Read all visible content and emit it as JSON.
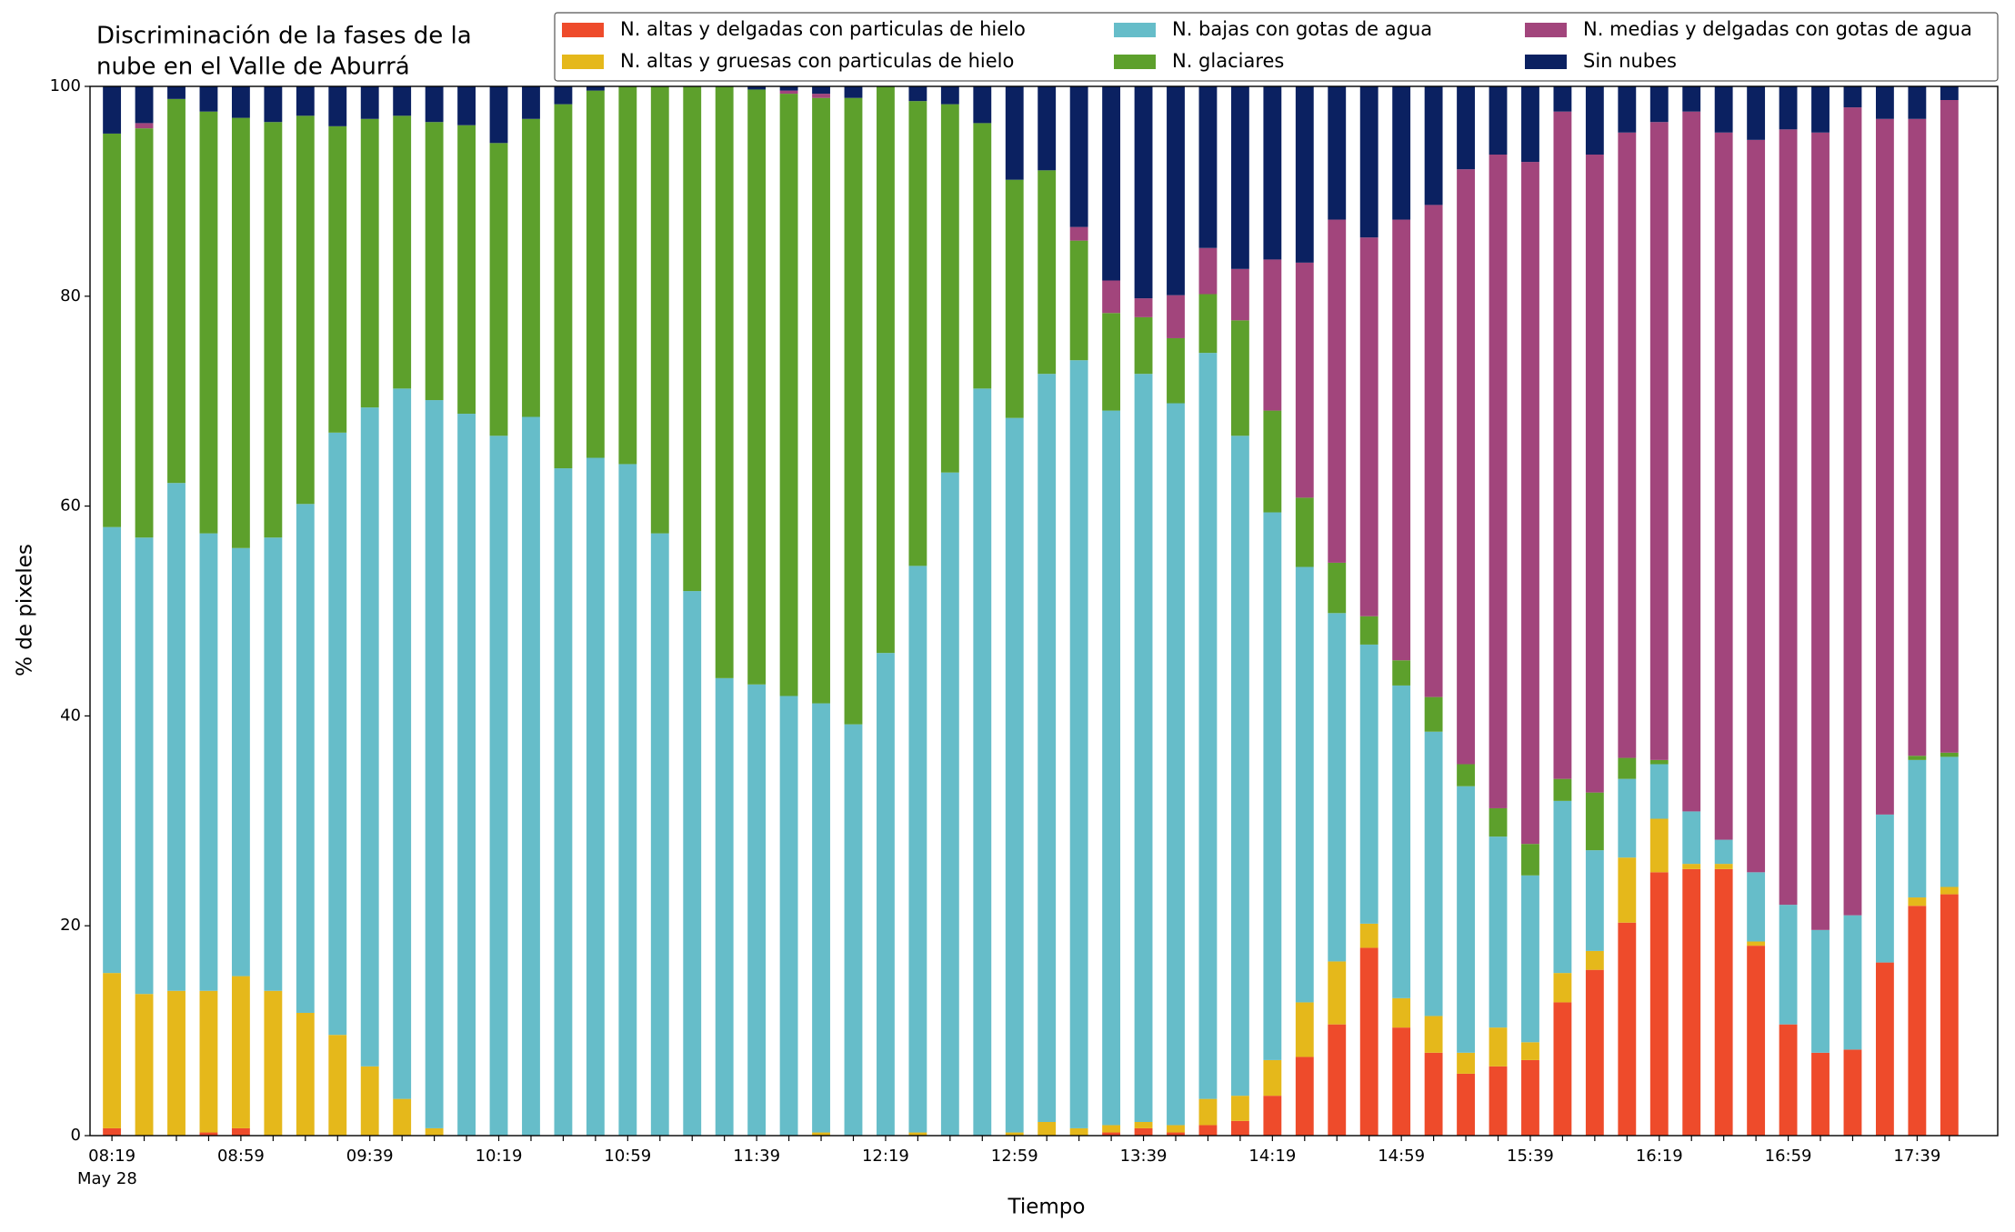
{
  "chart_data": {
    "type": "stacked_bar",
    "title": [
      "Discriminación de la fases de la",
      "nube en el Valle de Aburrá"
    ],
    "x_label": "Tiempo",
    "y_label": "% de pixeles",
    "x_date_label": "May 28",
    "categories": [
      "08:19",
      null,
      null,
      null,
      "08:59",
      null,
      null,
      null,
      "09:39",
      null,
      null,
      null,
      "10:19",
      null,
      null,
      null,
      "10:59",
      null,
      null,
      null,
      "11:39",
      null,
      null,
      null,
      "12:19",
      null,
      null,
      null,
      "12:59",
      null,
      null,
      null,
      "13:39",
      null,
      null,
      null,
      "14:19",
      null,
      null,
      null,
      "14:59",
      null,
      null,
      null,
      "15:39",
      null,
      null,
      null,
      "16:19",
      null,
      null,
      null,
      "16:59",
      null,
      null,
      null,
      "17:39",
      null
    ],
    "ylim": [
      0,
      100
    ],
    "yticks": [
      0,
      20,
      40,
      60,
      80,
      100
    ],
    "series": [
      {
        "name": "N. altas y delgadas con particulas de hielo",
        "color": "#ee4b2b",
        "values": [
          0.7,
          0,
          0,
          0.3,
          0.7,
          0,
          0,
          0,
          0,
          0,
          0,
          0,
          0,
          0,
          0,
          0,
          0,
          0,
          0,
          0,
          0,
          0,
          0,
          0,
          0,
          0,
          0,
          0,
          0,
          0,
          0,
          0.3,
          0.7,
          0.3,
          1,
          1.4,
          3.8,
          7.5,
          10.6,
          17.9,
          10.3,
          7.9,
          5.9,
          6.6,
          7.2,
          12.7,
          15.8,
          20.3,
          25.1,
          25.4,
          25.4,
          18.1,
          10.6,
          7.9,
          8.2,
          16.5,
          21.9,
          23
        ]
      },
      {
        "name": "N. altas y gruesas con particulas de hielo",
        "color": "#e5b81b",
        "values": [
          14.8,
          13.5,
          13.8,
          13.5,
          14.5,
          13.8,
          11.7,
          9.6,
          6.6,
          3.5,
          0.7,
          0,
          0,
          0,
          0,
          0,
          0,
          0,
          0,
          0,
          0,
          0,
          0.3,
          0,
          0,
          0.3,
          0,
          0,
          0.3,
          1.3,
          0.7,
          0.7,
          0.6,
          0.7,
          2.5,
          2.4,
          3.4,
          5.2,
          6,
          2.3,
          2.8,
          3.5,
          2,
          3.7,
          1.7,
          2.8,
          1.8,
          6.2,
          5.1,
          0.5,
          0.5,
          0.4,
          0,
          0,
          0,
          0,
          0.8,
          0.7
        ]
      },
      {
        "name": "N. bajas con gotas de agua",
        "color": "#66bdc9",
        "values": [
          42.5,
          43.5,
          48.4,
          43.6,
          40.8,
          43.2,
          48.5,
          57.4,
          62.8,
          67.7,
          69.4,
          68.8,
          66.7,
          68.5,
          63.6,
          64.6,
          64,
          57.4,
          51.9,
          43.6,
          43,
          41.9,
          40.9,
          39.2,
          46,
          54,
          63.2,
          71.2,
          68.1,
          71.3,
          73.2,
          68.1,
          71.3,
          68.8,
          71.1,
          62.9,
          52.2,
          41.5,
          33.2,
          26.6,
          29.8,
          27.1,
          25.4,
          18.2,
          15.9,
          16.4,
          9.6,
          7.5,
          5.2,
          5,
          2.3,
          6.6,
          11.4,
          11.7,
          12.8,
          14.1,
          13.1,
          12.4
        ]
      },
      {
        "name": "N. glaciares",
        "color": "#5da02c",
        "values": [
          37.5,
          39,
          36.6,
          40.2,
          41,
          39.6,
          37,
          29.2,
          27.5,
          26,
          26.5,
          27.5,
          27.9,
          28.4,
          34.7,
          35,
          36,
          42.6,
          48.1,
          56.4,
          56.7,
          57.4,
          57.7,
          59.7,
          54,
          44.3,
          35.1,
          25.3,
          22.7,
          19.4,
          11.4,
          9.3,
          5.4,
          6.2,
          5.6,
          11,
          9.7,
          6.6,
          4.8,
          2.7,
          2.4,
          3.3,
          2.1,
          2.7,
          3,
          2.1,
          5.5,
          2,
          0.4,
          0,
          0,
          0,
          0,
          0,
          0,
          0,
          0.4,
          0.4
        ]
      },
      {
        "name": "N. medias y delgadas con gotas de agua",
        "color": "#a2457c",
        "values": [
          0,
          0.5,
          0,
          0,
          0,
          0,
          0,
          0,
          0,
          0,
          0,
          0,
          0,
          0,
          0,
          0,
          0,
          0,
          0,
          0,
          0,
          0.3,
          0.4,
          0,
          0,
          0,
          0,
          0,
          0,
          0,
          1.3,
          3.1,
          1.8,
          4.1,
          4.4,
          4.9,
          14.4,
          22.4,
          32.7,
          36.1,
          42,
          46.9,
          56.7,
          62.3,
          65,
          63.6,
          60.8,
          59.6,
          60.8,
          66.7,
          67.4,
          69.8,
          73.9,
          76,
          77,
          66.3,
          60.7,
          62.2
        ]
      },
      {
        "name": "Sin nubes",
        "color": "#0b2161",
        "values": [
          4.5,
          3.5,
          1.2,
          2.4,
          3,
          3.4,
          2.8,
          3.8,
          3.1,
          2.8,
          3.4,
          3.7,
          5.4,
          3.1,
          1.7,
          0.4,
          0,
          0,
          0,
          0,
          0.3,
          0.4,
          0.7,
          1.1,
          0,
          1.4,
          1.7,
          3.5,
          8.9,
          8,
          13.4,
          18.5,
          20.2,
          19.9,
          15.4,
          17.4,
          16.5,
          16.8,
          12.7,
          14.4,
          12.7,
          11.3,
          7.9,
          6.5,
          7.2,
          2.4,
          6.5,
          4.4,
          3.4,
          2.4,
          4.4,
          5.1,
          4.1,
          4.4,
          2,
          3.1,
          3.1,
          1.3
        ]
      }
    ]
  }
}
